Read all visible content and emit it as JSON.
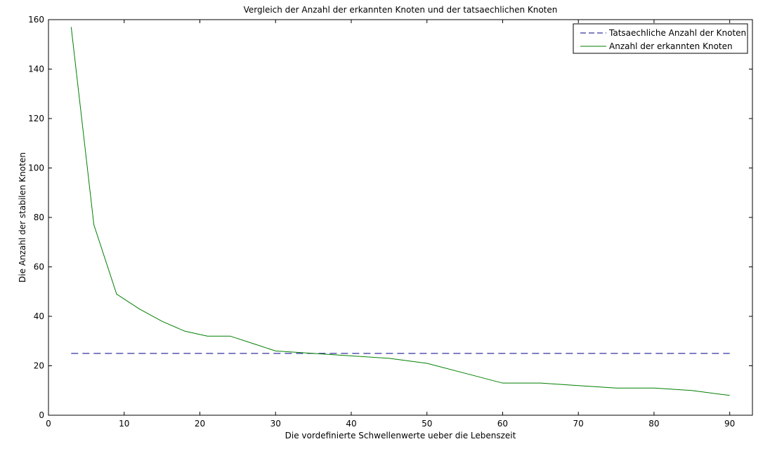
{
  "chart_data": {
    "type": "line",
    "title": "Vergleich der Anzahl der erkannten Knoten und der tatsaechlichen Knoten",
    "xlabel": "Die vordefinierte Schwellenwerte ueber die Lebenszeit",
    "ylabel": "Die Anzahl der stabilen Knoten",
    "xlim": [
      0,
      93
    ],
    "ylim": [
      0,
      160
    ],
    "xticks": [
      0,
      10,
      20,
      30,
      40,
      50,
      60,
      70,
      80,
      90
    ],
    "yticks": [
      0,
      20,
      40,
      60,
      80,
      100,
      120,
      140,
      160
    ],
    "grid": false,
    "legend_position": "top-right",
    "series": [
      {
        "name": "Tatsaechliche Anzahl der Knoten",
        "color": "#00008b",
        "style": "dashed",
        "x": [
          3,
          90
        ],
        "y": [
          25,
          25
        ]
      },
      {
        "name": "Anzahl der erkannten Knoten",
        "color": "#007f00",
        "style": "solid",
        "x": [
          3,
          6,
          9,
          12,
          15,
          18,
          21,
          24,
          27,
          30,
          35,
          40,
          45,
          50,
          55,
          60,
          65,
          70,
          75,
          80,
          85,
          90
        ],
        "y": [
          157,
          77,
          49,
          43,
          38,
          34,
          32,
          32,
          29,
          26,
          25,
          24,
          23,
          21,
          17,
          13,
          13,
          12,
          11,
          11,
          10,
          8
        ]
      }
    ]
  }
}
